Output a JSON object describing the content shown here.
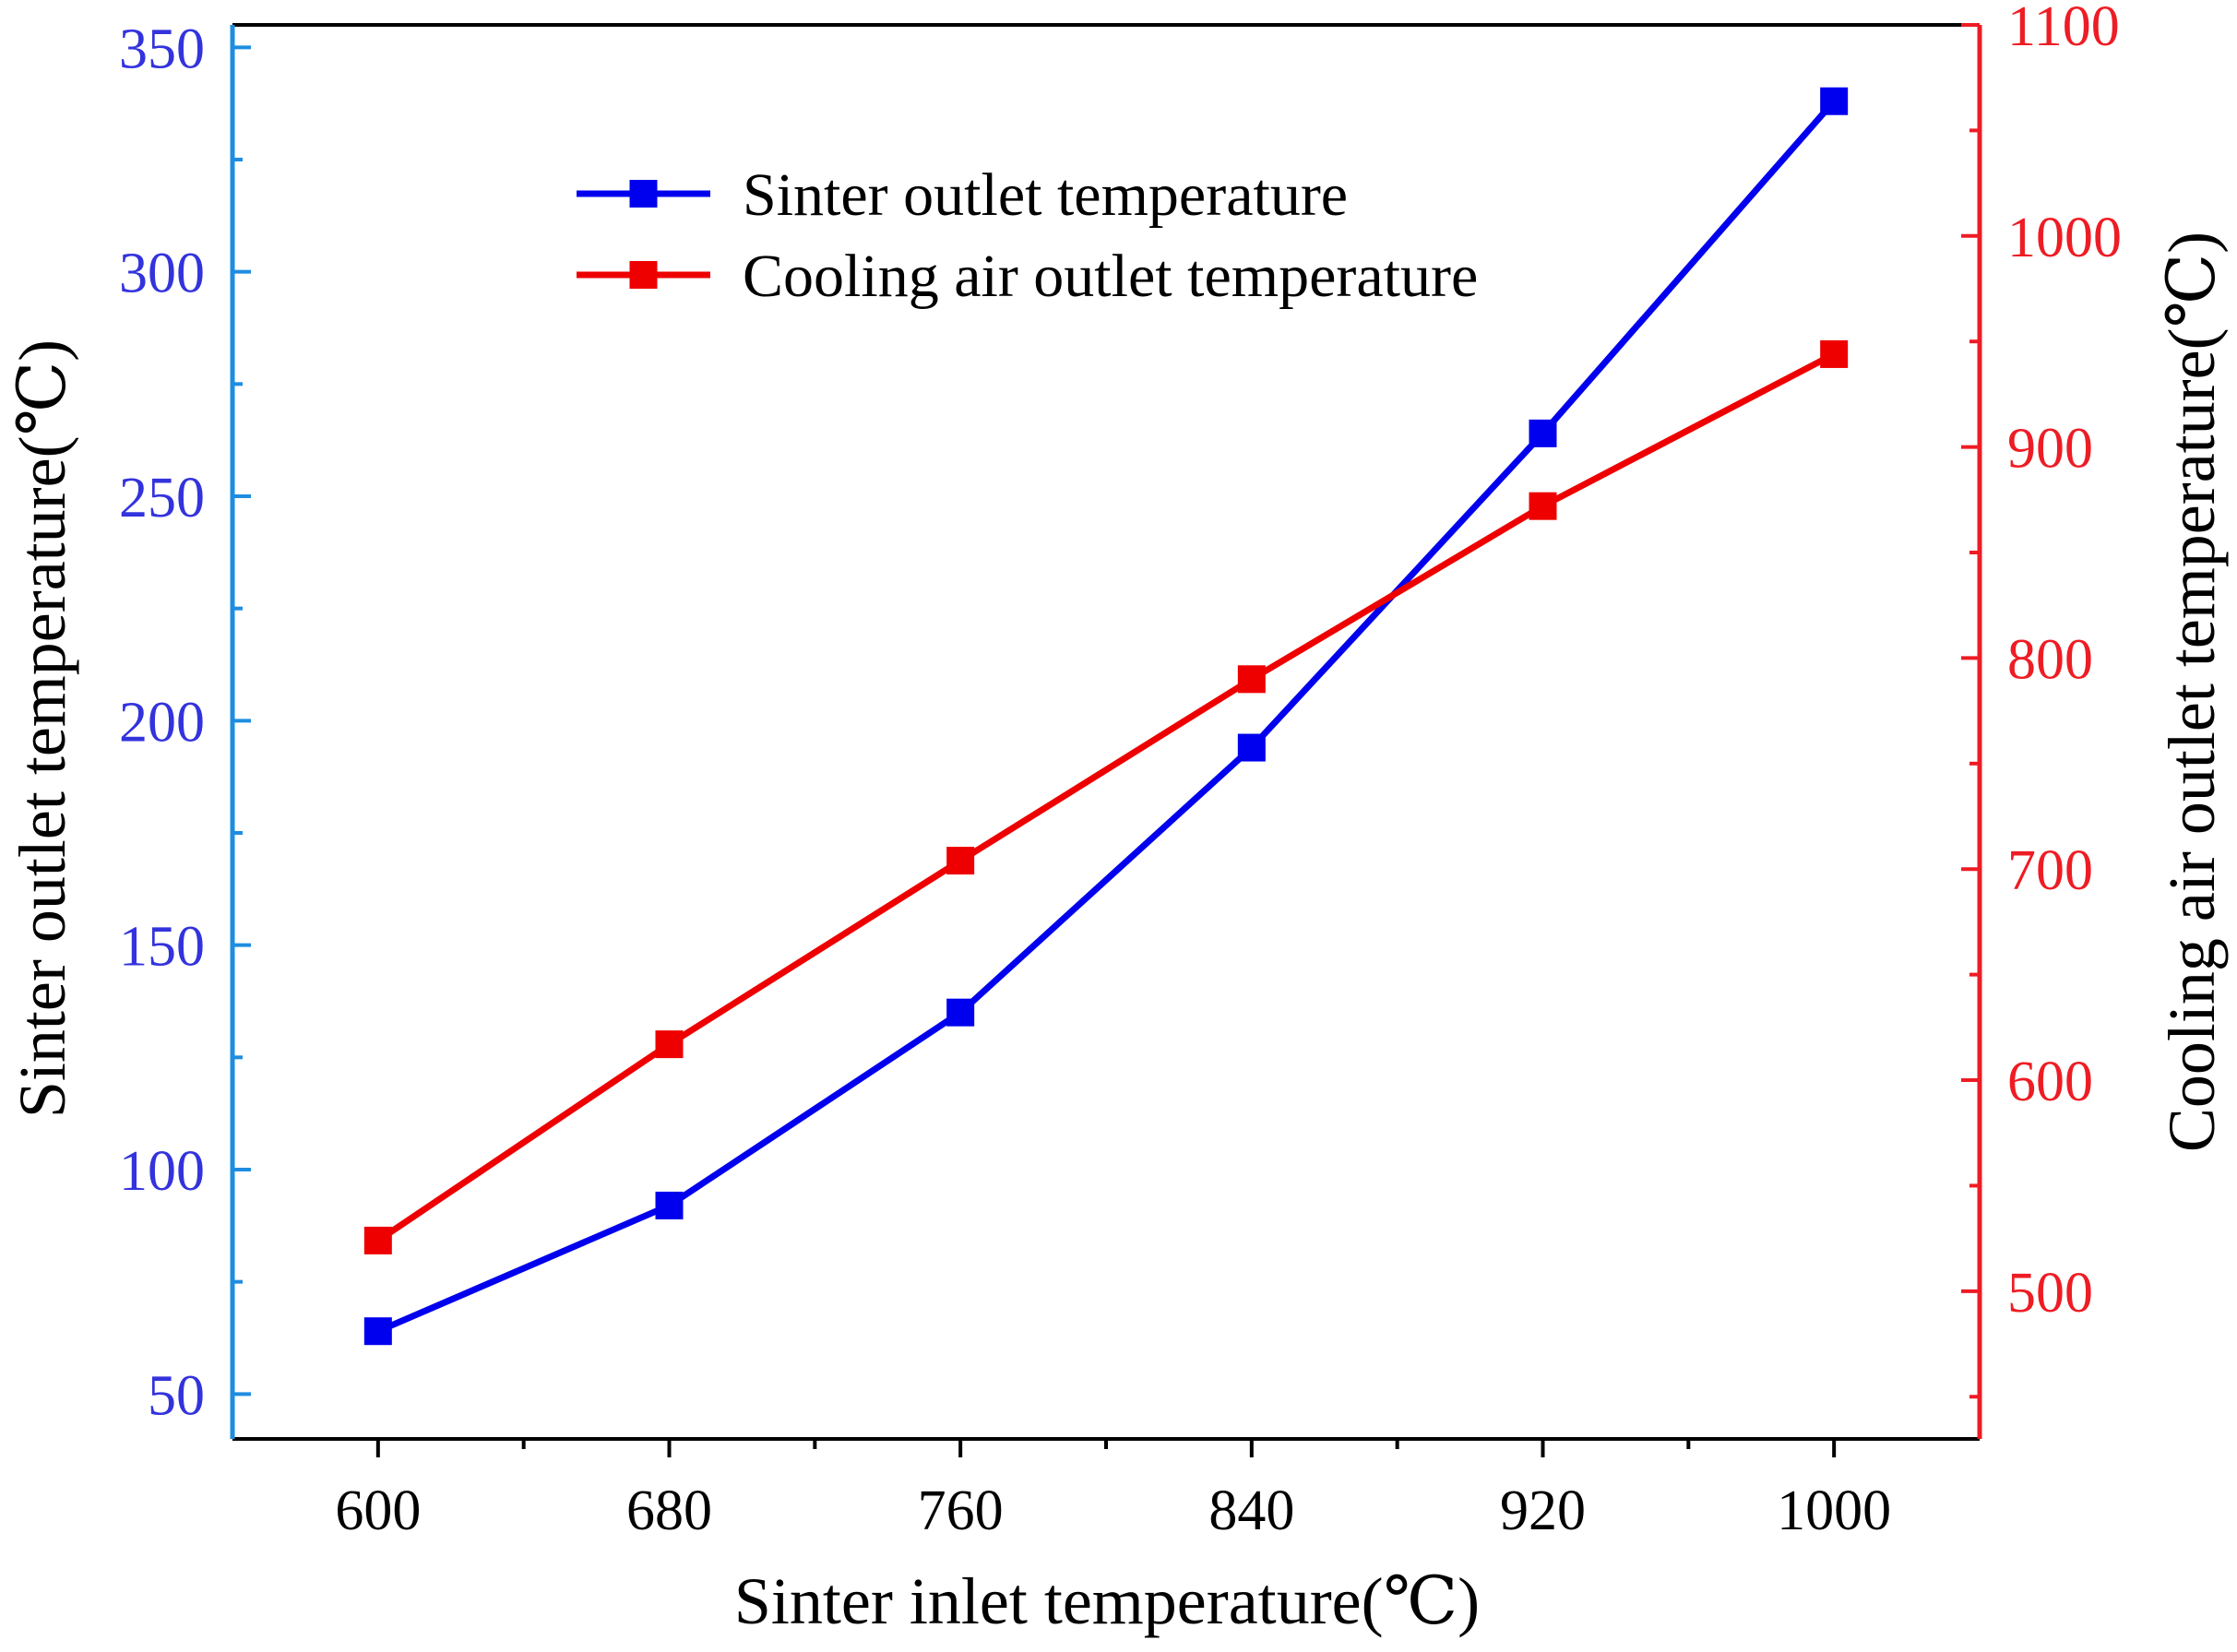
{
  "chart_data": {
    "type": "line",
    "title": "",
    "xlabel": "Sinter inlet temperature(℃)",
    "x": [
      600,
      680,
      760,
      840,
      920,
      1000
    ],
    "xlim": [
      560,
      1040
    ],
    "xticks": [
      "600",
      "680",
      "760",
      "840",
      "920",
      "1000"
    ],
    "xticks_values": [
      600,
      680,
      760,
      840,
      920,
      1000
    ],
    "xminor_ticks": [
      640,
      720,
      800,
      880,
      960
    ],
    "grid": false,
    "legend_position": "upper-center",
    "axes": {
      "left": {
        "label": "Sinter outlet temperature(℃)",
        "color": "#3333dd",
        "ylim": [
          40,
          355
        ],
        "ticks": [
          50,
          100,
          150,
          200,
          250,
          300,
          350
        ],
        "tick_labels": [
          "50",
          "100",
          "150",
          "200",
          "250",
          "300",
          "350"
        ],
        "minor_ticks": [
          75,
          125,
          175,
          225,
          275,
          325
        ]
      },
      "right": {
        "label": "Cooling air outlet temperature(℃)",
        "color": "#ee1c24",
        "ylim": [
          430,
          1100
        ],
        "ticks": [
          500,
          600,
          700,
          800,
          900,
          1000,
          1100
        ],
        "tick_labels": [
          "500",
          "600",
          "700",
          "800",
          "900",
          "1000",
          "1100"
        ],
        "minor_ticks": [
          450,
          550,
          650,
          750,
          850,
          950,
          1050
        ]
      }
    },
    "series": [
      {
        "name": "Sinter outlet temperature",
        "axis": "left",
        "color": "#0000ee",
        "marker": "square",
        "values": [
          64,
          92,
          135,
          194,
          264,
          338
        ]
      },
      {
        "name": "Cooling air outlet temperature",
        "axis": "right",
        "color": "#ee0000",
        "marker": "square",
        "values": [
          524,
          617,
          704,
          790,
          872,
          944
        ]
      }
    ]
  }
}
